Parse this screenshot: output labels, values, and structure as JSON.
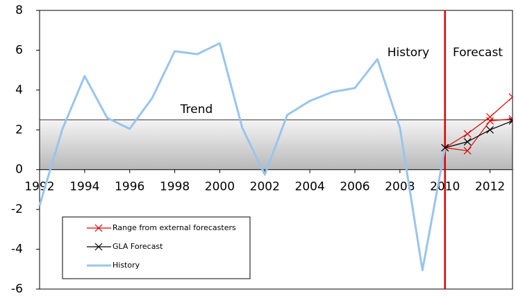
{
  "chart_data": {
    "type": "line",
    "xlim": [
      1992,
      2013
    ],
    "xticks": [
      1992,
      1994,
      1996,
      1998,
      2000,
      2002,
      2004,
      2006,
      2008,
      2010,
      2012
    ],
    "ylim": [
      -6,
      8
    ],
    "yticks": [
      -6,
      -4,
      -2,
      0,
      2,
      4,
      6,
      8
    ],
    "trend": {
      "label": "Trend",
      "value": 2.5
    },
    "annotations": [
      "History",
      "Forecast"
    ],
    "divider_x": 2010,
    "divider_color": "#e00000",
    "series": [
      {
        "name": "Range from external forecasters",
        "color": "#e00000",
        "marker": "x",
        "x": [
          2010,
          2011,
          2012,
          2013
        ],
        "high": [
          1.1,
          1.8,
          2.65,
          3.65
        ],
        "low": [
          1.1,
          0.95,
          2.45,
          2.55
        ]
      },
      {
        "name": "GLA Forecast",
        "color": "#000000",
        "marker": "x",
        "x": [
          2010,
          2011,
          2012,
          2013
        ],
        "values": [
          1.1,
          1.4,
          2.0,
          2.45
        ]
      },
      {
        "name": "History",
        "color": "#99c4ee",
        "x": [
          1992,
          1993,
          1994,
          1995,
          1996,
          1997,
          1998,
          1999,
          2000,
          2001,
          2002,
          2003,
          2004,
          2005,
          2006,
          2007,
          2008,
          2009,
          2010
        ],
        "values": [
          -1.8,
          2.0,
          4.7,
          2.6,
          2.05,
          3.6,
          5.95,
          5.8,
          6.35,
          2.1,
          -0.25,
          2.75,
          3.45,
          3.9,
          4.1,
          5.55,
          2.1,
          -5.05,
          1.1
        ]
      }
    ]
  }
}
